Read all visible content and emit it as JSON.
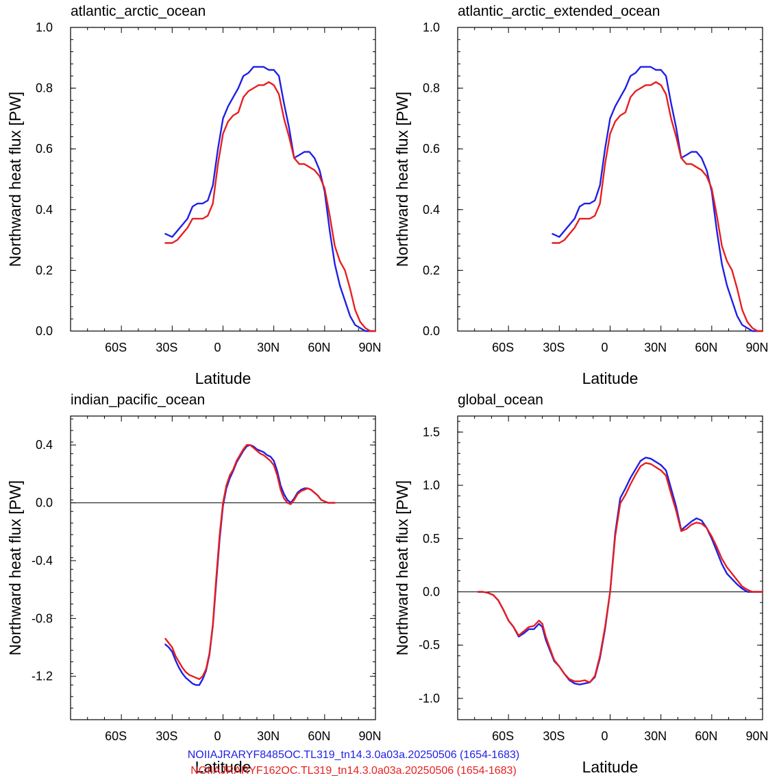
{
  "colors": {
    "series_a": "#1f1fe6",
    "series_b": "#e61f1f",
    "axis": "#000000"
  },
  "legend": {
    "entries": [
      {
        "text": "NOIIAJRARYF8485OC.TL319_tn14.3.0a03a.20250506 (1654-1683)",
        "color": "#1f1fe6"
      },
      {
        "text": "NOIIAJRARYF162OC.TL319_tn14.3.0a03a.20250506 (1654-1683)",
        "color": "#e61f1f"
      }
    ]
  },
  "chart_data": [
    {
      "type": "line",
      "title": "atlantic_arctic_ocean",
      "xlabel": "Latitude",
      "ylabel": "Northward heat flux [PW]",
      "xlim": [
        -90,
        90
      ],
      "ylim": [
        0,
        1.0
      ],
      "xticks": [
        -60,
        -30,
        0,
        30,
        60,
        90
      ],
      "xtick_labels": [
        "60S",
        "30S",
        "0",
        "30N",
        "60N",
        "90N"
      ],
      "yticks": [
        0,
        0.2,
        0.4,
        0.6,
        0.8,
        1.0
      ],
      "ytick_labels": [
        "0.0",
        "0.2",
        "0.4",
        "0.6",
        "0.8",
        "1.0"
      ],
      "zero_line": false,
      "series": [
        {
          "x": [
            -34,
            -30,
            -27,
            -24,
            -21,
            -18,
            -15,
            -12,
            -9,
            -6,
            -3,
            0,
            3,
            6,
            9,
            12,
            15,
            18,
            21,
            24,
            27,
            30,
            33,
            36,
            39,
            42,
            45,
            48,
            51,
            54,
            57,
            60,
            63,
            66,
            69,
            72,
            75,
            78,
            81,
            84,
            87,
            90
          ],
          "y": [
            0.32,
            0.31,
            0.33,
            0.35,
            0.37,
            0.41,
            0.42,
            0.42,
            0.43,
            0.48,
            0.6,
            0.7,
            0.74,
            0.77,
            0.8,
            0.84,
            0.85,
            0.87,
            0.87,
            0.87,
            0.86,
            0.86,
            0.84,
            0.75,
            0.67,
            0.57,
            0.58,
            0.59,
            0.59,
            0.57,
            0.53,
            0.46,
            0.33,
            0.22,
            0.15,
            0.1,
            0.05,
            0.02,
            0.01,
            0.0,
            0.0,
            0.0
          ]
        },
        {
          "x": [
            -34,
            -30,
            -27,
            -24,
            -21,
            -18,
            -15,
            -12,
            -9,
            -6,
            -3,
            0,
            3,
            6,
            9,
            12,
            15,
            18,
            21,
            24,
            27,
            30,
            33,
            36,
            39,
            42,
            45,
            48,
            51,
            54,
            57,
            60,
            63,
            66,
            69,
            72,
            75,
            78,
            81,
            84,
            87,
            90
          ],
          "y": [
            0.29,
            0.29,
            0.3,
            0.32,
            0.34,
            0.37,
            0.37,
            0.37,
            0.38,
            0.42,
            0.55,
            0.65,
            0.69,
            0.71,
            0.72,
            0.77,
            0.79,
            0.8,
            0.81,
            0.81,
            0.82,
            0.81,
            0.78,
            0.7,
            0.64,
            0.57,
            0.55,
            0.55,
            0.54,
            0.53,
            0.51,
            0.47,
            0.38,
            0.28,
            0.23,
            0.2,
            0.14,
            0.07,
            0.03,
            0.01,
            0.0,
            0.0
          ]
        }
      ]
    },
    {
      "type": "line",
      "title": "atlantic_arctic_extended_ocean",
      "xlabel": "Latitude",
      "ylabel": "Northward heat flux [PW]",
      "xlim": [
        -90,
        90
      ],
      "ylim": [
        0,
        1.0
      ],
      "xticks": [
        -60,
        -30,
        0,
        30,
        60,
        90
      ],
      "xtick_labels": [
        "60S",
        "30S",
        "0",
        "30N",
        "60N",
        "90N"
      ],
      "yticks": [
        0,
        0.2,
        0.4,
        0.6,
        0.8,
        1.0
      ],
      "ytick_labels": [
        "0.0",
        "0.2",
        "0.4",
        "0.6",
        "0.8",
        "1.0"
      ],
      "zero_line": false,
      "series": [
        {
          "x": [
            -34,
            -30,
            -27,
            -24,
            -21,
            -18,
            -15,
            -12,
            -9,
            -6,
            -3,
            0,
            3,
            6,
            9,
            12,
            15,
            18,
            21,
            24,
            27,
            30,
            33,
            36,
            39,
            42,
            45,
            48,
            51,
            54,
            57,
            60,
            63,
            66,
            69,
            72,
            75,
            78,
            81,
            84,
            87,
            90
          ],
          "y": [
            0.32,
            0.31,
            0.33,
            0.35,
            0.37,
            0.41,
            0.42,
            0.42,
            0.43,
            0.48,
            0.6,
            0.7,
            0.74,
            0.77,
            0.8,
            0.84,
            0.85,
            0.87,
            0.87,
            0.87,
            0.86,
            0.86,
            0.84,
            0.75,
            0.67,
            0.57,
            0.58,
            0.59,
            0.59,
            0.57,
            0.53,
            0.46,
            0.33,
            0.22,
            0.15,
            0.1,
            0.05,
            0.02,
            0.01,
            0.0,
            0.0,
            0.0
          ]
        },
        {
          "x": [
            -34,
            -30,
            -27,
            -24,
            -21,
            -18,
            -15,
            -12,
            -9,
            -6,
            -3,
            0,
            3,
            6,
            9,
            12,
            15,
            18,
            21,
            24,
            27,
            30,
            33,
            36,
            39,
            42,
            45,
            48,
            51,
            54,
            57,
            60,
            63,
            66,
            69,
            72,
            75,
            78,
            81,
            84,
            87,
            90
          ],
          "y": [
            0.29,
            0.29,
            0.3,
            0.32,
            0.34,
            0.37,
            0.37,
            0.37,
            0.38,
            0.42,
            0.55,
            0.65,
            0.69,
            0.71,
            0.72,
            0.77,
            0.79,
            0.8,
            0.81,
            0.81,
            0.82,
            0.81,
            0.78,
            0.7,
            0.64,
            0.57,
            0.55,
            0.55,
            0.54,
            0.53,
            0.51,
            0.47,
            0.38,
            0.28,
            0.23,
            0.2,
            0.14,
            0.07,
            0.03,
            0.01,
            0.0,
            0.0
          ]
        }
      ]
    },
    {
      "type": "line",
      "title": "indian_pacific_ocean",
      "xlabel": "Latitude",
      "ylabel": "Northward heat flux [PW]",
      "xlim": [
        -90,
        90
      ],
      "ylim": [
        -1.5,
        0.6
      ],
      "xticks": [
        -60,
        -30,
        0,
        30,
        60,
        90
      ],
      "xtick_labels": [
        "60S",
        "30S",
        "0",
        "30N",
        "60N",
        "90N"
      ],
      "yticks": [
        -1.2,
        -0.8,
        -0.4,
        0.0,
        0.4
      ],
      "ytick_labels": [
        "-1.2",
        "-0.8",
        "-0.4",
        "0.0",
        "0.4"
      ],
      "zero_line": true,
      "series": [
        {
          "x": [
            -34,
            -32,
            -30,
            -28,
            -26,
            -24,
            -22,
            -20,
            -18,
            -16,
            -14,
            -12,
            -10,
            -8,
            -6,
            -4,
            -2,
            0,
            2,
            4,
            6,
            8,
            10,
            12,
            14,
            16,
            18,
            20,
            22,
            24,
            26,
            28,
            30,
            32,
            34,
            36,
            38,
            40,
            42,
            44,
            46,
            48,
            50,
            52,
            54,
            56,
            58,
            60,
            62,
            64,
            66
          ],
          "y": [
            -0.98,
            -1.0,
            -1.03,
            -1.09,
            -1.14,
            -1.18,
            -1.21,
            -1.23,
            -1.25,
            -1.26,
            -1.26,
            -1.22,
            -1.16,
            -1.05,
            -0.85,
            -0.55,
            -0.25,
            -0.02,
            0.1,
            0.17,
            0.22,
            0.28,
            0.32,
            0.36,
            0.39,
            0.4,
            0.39,
            0.37,
            0.36,
            0.35,
            0.33,
            0.32,
            0.29,
            0.22,
            0.12,
            0.06,
            0.02,
            0.0,
            0.03,
            0.07,
            0.09,
            0.1,
            0.1,
            0.09,
            0.07,
            0.05,
            0.02,
            0.01,
            0.0,
            0.0,
            0.0
          ]
        },
        {
          "x": [
            -34,
            -32,
            -30,
            -28,
            -26,
            -24,
            -22,
            -20,
            -18,
            -16,
            -14,
            -12,
            -10,
            -8,
            -6,
            -4,
            -2,
            0,
            2,
            4,
            6,
            8,
            10,
            12,
            14,
            16,
            18,
            20,
            22,
            24,
            26,
            28,
            30,
            32,
            34,
            36,
            38,
            40,
            42,
            44,
            46,
            48,
            50,
            52,
            54,
            56,
            58,
            60,
            62,
            64,
            66
          ],
          "y": [
            -0.94,
            -0.97,
            -1.0,
            -1.06,
            -1.1,
            -1.14,
            -1.17,
            -1.19,
            -1.2,
            -1.21,
            -1.22,
            -1.2,
            -1.15,
            -1.04,
            -0.84,
            -0.52,
            -0.22,
            0.0,
            0.12,
            0.19,
            0.23,
            0.29,
            0.33,
            0.37,
            0.4,
            0.4,
            0.38,
            0.36,
            0.34,
            0.33,
            0.31,
            0.29,
            0.26,
            0.19,
            0.09,
            0.03,
            0.0,
            -0.01,
            0.02,
            0.06,
            0.08,
            0.09,
            0.1,
            0.09,
            0.07,
            0.05,
            0.02,
            0.01,
            0.0,
            0.0,
            0.0
          ]
        }
      ]
    },
    {
      "type": "line",
      "title": "global_ocean",
      "xlabel": "Latitude",
      "ylabel": "Northward heat flux [PW]",
      "xlim": [
        -90,
        90
      ],
      "ylim": [
        -1.2,
        1.65
      ],
      "xticks": [
        -60,
        -30,
        0,
        30,
        60,
        90
      ],
      "xtick_labels": [
        "60S",
        "30S",
        "0",
        "30N",
        "60N",
        "90N"
      ],
      "yticks": [
        -1.0,
        -0.5,
        0.0,
        0.5,
        1.0,
        1.5
      ],
      "ytick_labels": [
        "-1.0",
        "-0.5",
        "0.0",
        "0.5",
        "1.0",
        "1.5"
      ],
      "zero_line": true,
      "series": [
        {
          "x": [
            -78,
            -75,
            -72,
            -69,
            -66,
            -63,
            -60,
            -57,
            -54,
            -51,
            -48,
            -45,
            -42,
            -40,
            -38,
            -36,
            -33,
            -30,
            -27,
            -24,
            -21,
            -18,
            -15,
            -12,
            -9,
            -6,
            -3,
            0,
            3,
            6,
            9,
            12,
            15,
            18,
            21,
            24,
            27,
            30,
            33,
            36,
            39,
            42,
            45,
            48,
            51,
            54,
            57,
            60,
            63,
            66,
            69,
            72,
            75,
            78,
            81,
            84,
            87,
            90
          ],
          "y": [
            0.0,
            0.0,
            -0.01,
            -0.03,
            -0.08,
            -0.17,
            -0.27,
            -0.33,
            -0.42,
            -0.39,
            -0.35,
            -0.35,
            -0.3,
            -0.33,
            -0.45,
            -0.53,
            -0.65,
            -0.7,
            -0.77,
            -0.83,
            -0.86,
            -0.87,
            -0.86,
            -0.85,
            -0.8,
            -0.62,
            -0.35,
            0.0,
            0.55,
            0.88,
            0.97,
            1.07,
            1.15,
            1.23,
            1.26,
            1.25,
            1.22,
            1.19,
            1.14,
            0.97,
            0.8,
            0.58,
            0.62,
            0.66,
            0.69,
            0.67,
            0.6,
            0.5,
            0.38,
            0.26,
            0.17,
            0.12,
            0.07,
            0.03,
            0.0,
            0.0,
            0.0,
            0.0
          ]
        },
        {
          "x": [
            -78,
            -75,
            -72,
            -69,
            -66,
            -63,
            -60,
            -57,
            -54,
            -51,
            -48,
            -45,
            -42,
            -40,
            -38,
            -36,
            -33,
            -30,
            -27,
            -24,
            -21,
            -18,
            -15,
            -12,
            -9,
            -6,
            -3,
            0,
            3,
            6,
            9,
            12,
            15,
            18,
            21,
            24,
            27,
            30,
            33,
            36,
            39,
            42,
            45,
            48,
            51,
            54,
            57,
            60,
            63,
            66,
            69,
            72,
            75,
            78,
            81,
            84,
            87,
            90
          ],
          "y": [
            0.0,
            0.0,
            -0.01,
            -0.03,
            -0.08,
            -0.17,
            -0.27,
            -0.33,
            -0.41,
            -0.37,
            -0.33,
            -0.32,
            -0.27,
            -0.3,
            -0.42,
            -0.51,
            -0.64,
            -0.7,
            -0.77,
            -0.82,
            -0.84,
            -0.84,
            -0.83,
            -0.85,
            -0.79,
            -0.6,
            -0.33,
            0.0,
            0.52,
            0.83,
            0.91,
            1.01,
            1.1,
            1.18,
            1.21,
            1.2,
            1.17,
            1.14,
            1.09,
            0.92,
            0.76,
            0.57,
            0.59,
            0.63,
            0.65,
            0.64,
            0.6,
            0.52,
            0.42,
            0.31,
            0.23,
            0.17,
            0.11,
            0.05,
            0.02,
            0.0,
            0.0,
            0.0
          ]
        }
      ]
    }
  ]
}
